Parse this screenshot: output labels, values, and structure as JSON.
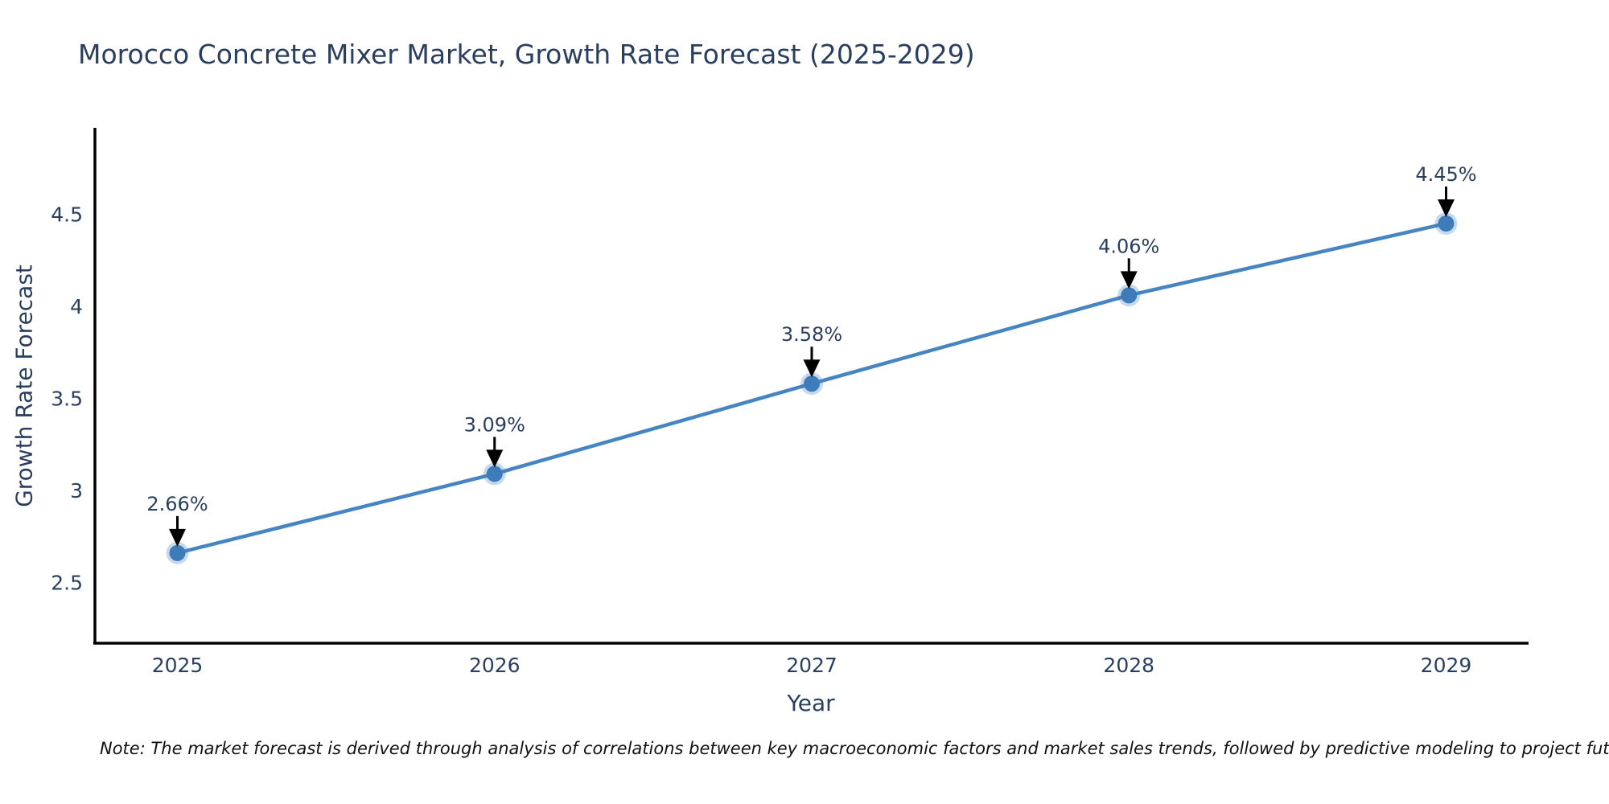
{
  "title": {
    "text": "Morocco Concrete Mixer Market, Growth Rate Forecast (2025-2029)",
    "color": "#2a3f5f"
  },
  "note": {
    "text": "Note: The market forecast is derived through analysis of correlations between key macroeconomic factors and market sales trends, followed by predictive modeling to project future sales"
  },
  "chart_data": {
    "type": "line",
    "title": "Morocco Concrete Mixer Market, Growth Rate Forecast (2025-2029)",
    "x": [
      2025,
      2026,
      2027,
      2028,
      2029
    ],
    "series": [
      {
        "name": "Growth Rate Forecast",
        "values": [
          2.66,
          3.09,
          3.58,
          4.06,
          4.45
        ]
      }
    ],
    "point_labels": [
      "2.66%",
      "3.09%",
      "3.58%",
      "4.06%",
      "4.45%"
    ],
    "xlabel": "Year",
    "ylabel": "Growth Rate Forecast",
    "xticks": [
      "2025",
      "2026",
      "2027",
      "2028",
      "2029"
    ],
    "yticks": [
      2.5,
      3,
      3.5,
      4,
      4.5
    ],
    "xlim": [
      2024.74,
      2029.26
    ],
    "ylim": [
      2.17,
      4.97
    ],
    "grid": false,
    "legend": "none",
    "colors": {
      "line": "#4685c1",
      "marker": "#3d7cb8",
      "marker_halo": "#4685c1",
      "axis": "#000000",
      "tick_text": "#2a3f5f",
      "annotation_text": "#2a3f5f",
      "annotation_arrow": "#000000"
    }
  }
}
